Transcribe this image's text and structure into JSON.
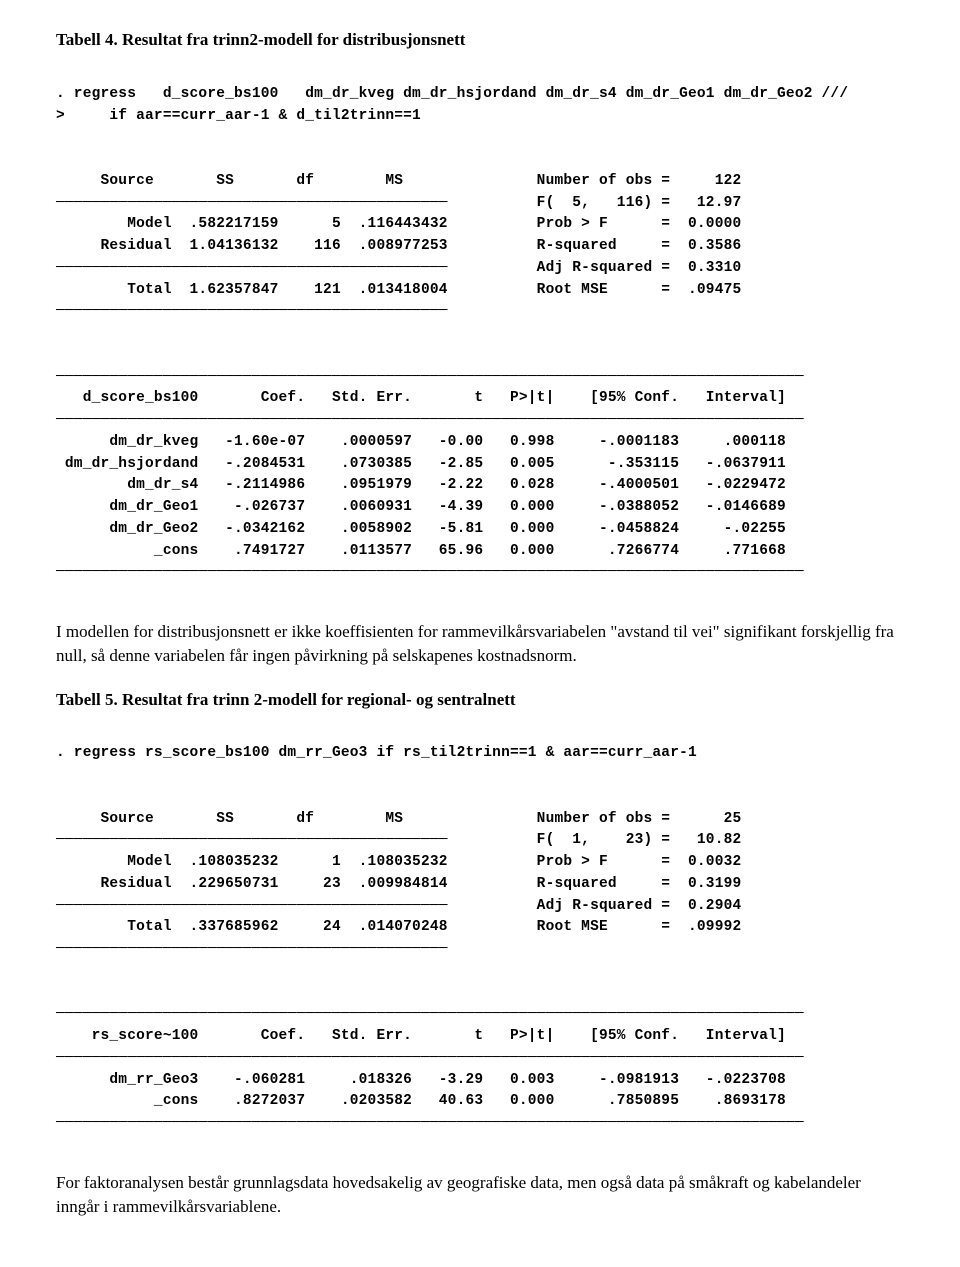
{
  "heading1": "Tabell 4. Resultat fra trinn2-modell for distribusjonsnett",
  "stata1_cmd": ". regress   d_score_bs100   dm_dr_kveg dm_dr_hsjordand dm_dr_s4 dm_dr_Geo1 dm_dr_Geo2 ///\n>     if aar==curr_aar-1 & d_til2trinn==1",
  "anova1": {
    "h": [
      "Source",
      "SS",
      "df",
      "MS"
    ],
    "r1": [
      "Model",
      ".582217159",
      "5",
      ".116443432"
    ],
    "r2": [
      "Residual",
      "1.04136132",
      "116",
      ".008977253"
    ],
    "r3": [
      "Total",
      "1.62357847",
      "121",
      ".013418004"
    ]
  },
  "stats1": {
    "s1": [
      "Number of obs",
      "=",
      "122"
    ],
    "s2": [
      "F(  5,   116)",
      "=",
      "12.97"
    ],
    "s3": [
      "Prob > F",
      "=",
      "0.0000"
    ],
    "s4": [
      "R-squared",
      "=",
      "0.3586"
    ],
    "s5": [
      "Adj R-squared",
      "=",
      "0.3310"
    ],
    "s6": [
      "Root MSE",
      "=",
      ".09475"
    ]
  },
  "coef1": {
    "h": [
      "d_score_bs100",
      "Coef.",
      "Std. Err.",
      "t",
      "P>|t|",
      "[95% Conf.",
      "Interval]"
    ],
    "r1": [
      "dm_dr_kveg",
      "-1.60e-07",
      ".0000597",
      "-0.00",
      "0.998",
      "-.0001183",
      ".000118"
    ],
    "r2": [
      "dm_dr_hsjordand",
      "-.2084531",
      ".0730385",
      "-2.85",
      "0.005",
      "-.353115",
      "-.0637911"
    ],
    "r3": [
      "dm_dr_s4",
      "-.2114986",
      ".0951979",
      "-2.22",
      "0.028",
      "-.4000501",
      "-.0229472"
    ],
    "r4": [
      "dm_dr_Geo1",
      "-.026737",
      ".0060931",
      "-4.39",
      "0.000",
      "-.0388052",
      "-.0146689"
    ],
    "r5": [
      "dm_dr_Geo2",
      "-.0342162",
      ".0058902",
      "-5.81",
      "0.000",
      "-.0458824",
      "-.02255"
    ],
    "r6": [
      "_cons",
      ".7491727",
      ".0113577",
      "65.96",
      "0.000",
      ".7266774",
      ".771668"
    ]
  },
  "para1": "I modellen for distribusjonsnett er ikke koeffisienten for rammevilkårsvariabelen \"avstand til vei\" signifikant forskjellig fra null, så denne variabelen får ingen påvirkning på selskapenes kostnadsnorm.",
  "heading2": "Tabell 5. Resultat fra trinn 2-modell for regional- og sentralnett",
  "stata2_cmd": ". regress rs_score_bs100 dm_rr_Geo3 if rs_til2trinn==1 & aar==curr_aar-1",
  "anova2": {
    "h": [
      "Source",
      "SS",
      "df",
      "MS"
    ],
    "r1": [
      "Model",
      ".108035232",
      "1",
      ".108035232"
    ],
    "r2": [
      "Residual",
      ".229650731",
      "23",
      ".009984814"
    ],
    "r3": [
      "Total",
      ".337685962",
      "24",
      ".014070248"
    ]
  },
  "stats2": {
    "s1": [
      "Number of obs",
      "=",
      "25"
    ],
    "s2": [
      "F(  1,    23)",
      "=",
      "10.82"
    ],
    "s3": [
      "Prob > F",
      "=",
      "0.0032"
    ],
    "s4": [
      "R-squared",
      "=",
      "0.3199"
    ],
    "s5": [
      "Adj R-squared",
      "=",
      "0.2904"
    ],
    "s6": [
      "Root MSE",
      "=",
      ".09992"
    ]
  },
  "coef2": {
    "h": [
      "rs_score~100",
      "Coef.",
      "Std. Err.",
      "t",
      "P>|t|",
      "[95% Conf.",
      "Interval]"
    ],
    "r1": [
      "dm_rr_Geo3",
      "-.060281",
      ".018326",
      "-3.29",
      "0.003",
      "-.0981913",
      "-.0223708"
    ],
    "r2": [
      "_cons",
      ".8272037",
      ".0203582",
      "40.63",
      "0.000",
      ".7850895",
      ".8693178"
    ]
  },
  "para2": "For faktoranalysen består grunnlagsdata hovedsakelig av geografiske data, men også data på småkraft og kabelandeler inngår i rammevilkårsvariablene."
}
